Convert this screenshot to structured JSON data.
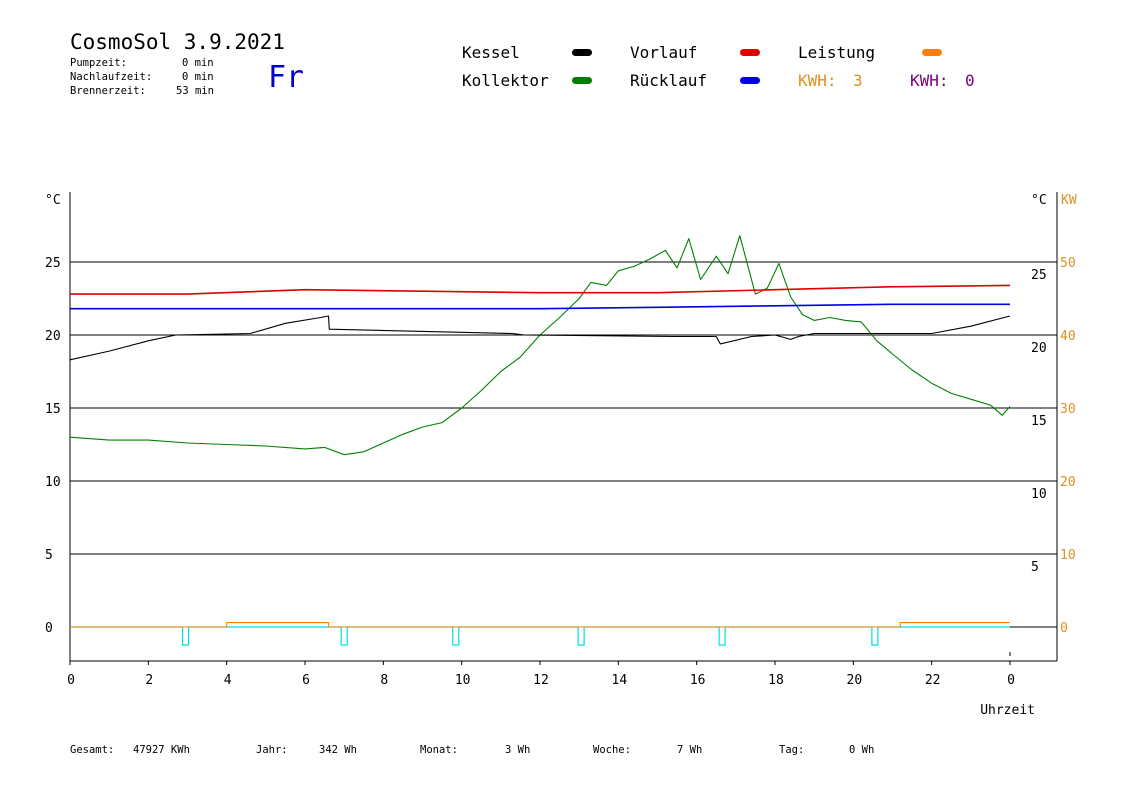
{
  "header": {
    "title": "CosmoSol 3.9.2021",
    "day": "Fr",
    "stats": [
      {
        "label": "Pumpzeit:",
        "value": "0 min"
      },
      {
        "label": "Nachlaufzeit:",
        "value": "0 min"
      },
      {
        "label": "Brennerzeit:",
        "value": "53 min"
      }
    ]
  },
  "legend": {
    "kessel": {
      "label": "Kessel",
      "color": "#000000"
    },
    "kollektor": {
      "label": "Kollektor",
      "color": "#008000"
    },
    "vorlauf": {
      "label": "Vorlauf",
      "color": "#e00000"
    },
    "ruecklauf": {
      "label": "Rücklauf",
      "color": "#0000e0"
    },
    "leistung": {
      "label": "Leistung",
      "color": "#ff8000"
    },
    "kwh1": {
      "label": "KWH:",
      "value": "3",
      "color": "#e09020"
    },
    "kwh2": {
      "label": "KWH:",
      "value": "0",
      "color": "#800080"
    }
  },
  "axes": {
    "left_unit": "°C",
    "right_unit_c": "°C",
    "right_unit_kw": "KW",
    "xlabel": "Uhrzeit",
    "left_ticks": [
      "0",
      "5",
      "10",
      "15",
      "20",
      "25"
    ],
    "right_c_ticks": [
      "5",
      "10",
      "15",
      "20",
      "25"
    ],
    "right_kw_ticks": [
      "0",
      "10",
      "20",
      "30",
      "40",
      "50"
    ],
    "x_ticks": [
      "0",
      "2",
      "4",
      "6",
      "8",
      "10",
      "12",
      "14",
      "16",
      "18",
      "20",
      "22",
      "0"
    ]
  },
  "footer": [
    {
      "label": "Gesamt:",
      "value": "47927 KWh"
    },
    {
      "label": "Jahr:",
      "value": "342 Wh"
    },
    {
      "label": "Monat:",
      "value": "3 Wh"
    },
    {
      "label": "Woche:",
      "value": "7 Wh"
    },
    {
      "label": "Tag:",
      "value": "0 Wh"
    }
  ],
  "chart_data": {
    "type": "line",
    "title": "CosmoSol 3.9.2021",
    "xlabel": "Uhrzeit",
    "ylabel": "°C",
    "xlim": [
      0,
      24
    ],
    "ylim": [
      -2.3,
      30
    ],
    "y2lim": [
      0,
      60
    ],
    "grid": true,
    "series": [
      {
        "name": "Kollektor",
        "color": "#008000",
        "x": [
          0,
          1,
          2,
          3,
          4,
          5,
          6,
          6.5,
          7,
          7.5,
          8,
          8.5,
          9,
          9.5,
          10,
          10.5,
          11,
          11.5,
          12,
          12.5,
          13,
          13.3,
          13.7,
          14,
          14.4,
          14.8,
          15.2,
          15.5,
          15.8,
          16.1,
          16.5,
          16.8,
          17.1,
          17.5,
          17.8,
          18.1,
          18.4,
          18.7,
          19,
          19.4,
          19.8,
          20.2,
          20.6,
          21,
          21.5,
          22,
          22.5,
          23,
          23.5,
          23.8,
          24
        ],
        "y": [
          13.0,
          12.8,
          12.8,
          12.6,
          12.5,
          12.4,
          12.2,
          12.3,
          11.8,
          12.0,
          12.6,
          13.2,
          13.7,
          14.0,
          15.0,
          16.2,
          17.5,
          18.5,
          20.0,
          21.2,
          22.5,
          23.6,
          23.4,
          24.4,
          24.7,
          25.2,
          25.8,
          24.6,
          26.6,
          23.8,
          25.4,
          24.2,
          26.8,
          22.8,
          23.2,
          24.9,
          22.6,
          21.4,
          21.0,
          21.2,
          21.0,
          20.9,
          19.6,
          18.7,
          17.6,
          16.7,
          16.0,
          15.6,
          15.2,
          14.5,
          15.1
        ]
      },
      {
        "name": "Kessel",
        "color": "#000000",
        "x": [
          0,
          1,
          2,
          2.7,
          4.6,
          5.5,
          6.4,
          6.6,
          6.62,
          11.3,
          11.6,
          15.4,
          16.5,
          16.6,
          16.62,
          17.4,
          18.0,
          18.4,
          18.6,
          19.0,
          22.0,
          23.0,
          24.0
        ],
        "y": [
          18.3,
          18.9,
          19.6,
          20.0,
          20.1,
          20.8,
          21.2,
          21.3,
          20.4,
          20.1,
          20.0,
          19.9,
          19.9,
          19.4,
          19.4,
          19.9,
          20.0,
          19.7,
          19.9,
          20.1,
          20.1,
          20.6,
          21.3
        ]
      },
      {
        "name": "Vorlauf",
        "color": "#e00000",
        "x": [
          0,
          3,
          6,
          9,
          12,
          15,
          18,
          21,
          24
        ],
        "y": [
          22.8,
          22.8,
          23.1,
          23.0,
          22.9,
          22.9,
          23.1,
          23.3,
          23.4
        ]
      },
      {
        "name": "Rücklauf",
        "color": "#0000e0",
        "x": [
          0,
          3,
          6,
          9,
          12,
          15,
          18,
          21,
          24
        ],
        "y": [
          21.8,
          21.8,
          21.8,
          21.8,
          21.8,
          21.9,
          22.0,
          22.1,
          22.1
        ]
      },
      {
        "name": "Leistung",
        "color": "#ff8000",
        "axis": "right",
        "x": [
          0,
          4.0,
          4.0,
          6.6,
          6.6,
          21.2,
          21.2,
          24
        ],
        "y": [
          0,
          0,
          0.6,
          0.6,
          0,
          0,
          0.6,
          0.6
        ]
      }
    ],
    "pulses_cyan": [
      2.95,
      7.0,
      9.85,
      13.05,
      16.65,
      20.55
    ]
  }
}
